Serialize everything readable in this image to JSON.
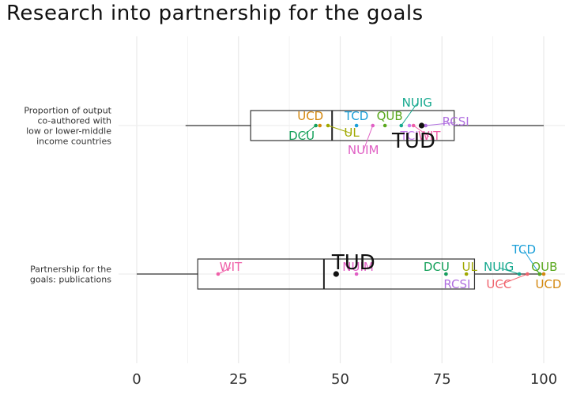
{
  "chart_data": {
    "type": "boxplot",
    "title": "Research into partnership for the goals",
    "xlabel": "",
    "ylabel": "",
    "xlim": [
      0,
      100
    ],
    "x_ticks": [
      0,
      25,
      50,
      75,
      100
    ],
    "grid": true,
    "highlight": "TUD",
    "categories": [
      {
        "label_lines": [
          "Proportion of output",
          "co-authored with",
          "low or lower-middle",
          "income countries"
        ],
        "box": {
          "whisker_low": 12,
          "q1": 28,
          "median": 48,
          "q3": 78,
          "whisker_high": 100
        },
        "highlight_value": 70,
        "points": [
          {
            "name": "UCD",
            "value": 45,
            "color": "#d4880f"
          },
          {
            "name": "DCU",
            "value": 44,
            "color": "#14a05a"
          },
          {
            "name": "UL",
            "value": 47,
            "color": "#a0a800"
          },
          {
            "name": "TCD",
            "value": 54,
            "color": "#1a9fd8"
          },
          {
            "name": "NUIM",
            "value": 58,
            "color": "#e05fc4"
          },
          {
            "name": "QUB",
            "value": 61,
            "color": "#5aa81e"
          },
          {
            "name": "NUIG",
            "value": 65,
            "color": "#15a88e"
          },
          {
            "name": "TCI",
            "value": 67,
            "color": "#c77cf0"
          },
          {
            "name": "WIT",
            "value": 68,
            "color": "#ef5fa8"
          },
          {
            "name": "RCSI",
            "value": 71,
            "color": "#b070e0"
          }
        ]
      },
      {
        "label_lines": [
          "Partnership for the",
          "goals: publications"
        ],
        "box": {
          "whisker_low": 0,
          "q1": 15,
          "median": 46,
          "q3": 83,
          "whisker_high": 100
        },
        "highlight_value": 49,
        "points": [
          {
            "name": "WIT",
            "value": 20,
            "color": "#ef5fa8"
          },
          {
            "name": "NUIM",
            "value": 54,
            "color": "#e05fc4"
          },
          {
            "name": "RCSI",
            "value": 76,
            "color": "#b070e0"
          },
          {
            "name": "DCU",
            "value": 76,
            "color": "#14a05a"
          },
          {
            "name": "UL",
            "value": 81,
            "color": "#a0a800"
          },
          {
            "name": "NUIG",
            "value": 94,
            "color": "#15a88e"
          },
          {
            "name": "UCC",
            "value": 96,
            "color": "#f0646e"
          },
          {
            "name": "TCD",
            "value": 99,
            "color": "#1a9fd8"
          },
          {
            "name": "QUB",
            "value": 99,
            "color": "#5aa81e"
          },
          {
            "name": "UCD",
            "value": 100,
            "color": "#d4880f"
          }
        ]
      }
    ]
  }
}
